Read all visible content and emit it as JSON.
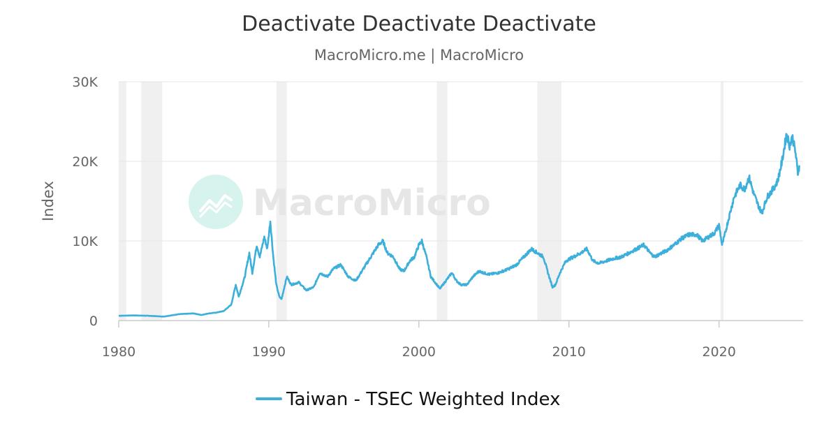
{
  "chart_data": {
    "type": "line",
    "title": "Deactivate Deactivate Deactivate",
    "subtitle": "MacroMicro.me | MacroMicro",
    "ylabel": "Index",
    "xlabel": "",
    "xlim": [
      1980,
      2025.6
    ],
    "ylim": [
      0,
      30000
    ],
    "x_ticks": [
      {
        "value": 1980,
        "label": "1980"
      },
      {
        "value": 1990,
        "label": "1990"
      },
      {
        "value": 2000,
        "label": "2000"
      },
      {
        "value": 2010,
        "label": "2010"
      },
      {
        "value": 2020,
        "label": "2020"
      }
    ],
    "y_ticks": [
      {
        "value": 0,
        "label": "0"
      },
      {
        "value": 10000,
        "label": "10K"
      },
      {
        "value": 20000,
        "label": "20K"
      },
      {
        "value": 30000,
        "label": "30K"
      }
    ],
    "grid": true,
    "legend_position": "bottom",
    "watermark": "MacroMicro",
    "shaded_periods": [
      [
        1980.0,
        1980.5
      ],
      [
        1981.5,
        1982.9
      ],
      [
        1990.5,
        1991.2
      ],
      [
        2001.2,
        2001.9
      ],
      [
        2007.9,
        2009.5
      ],
      [
        2020.1,
        2020.3
      ]
    ],
    "series": [
      {
        "name": "Taiwan - TSEC Weighted Index",
        "color": "#3cafdb",
        "x": [
          1980.0,
          1981.0,
          1982.0,
          1983.0,
          1984.0,
          1985.0,
          1985.5,
          1986.0,
          1986.5,
          1987.0,
          1987.5,
          1987.8,
          1988.0,
          1988.4,
          1988.7,
          1988.9,
          1989.2,
          1989.4,
          1989.7,
          1989.9,
          1990.1,
          1990.3,
          1990.5,
          1990.7,
          1990.85,
          1991.2,
          1991.5,
          1992.0,
          1992.5,
          1993.0,
          1993.4,
          1993.9,
          1994.3,
          1994.8,
          1995.3,
          1995.8,
          1996.3,
          1996.8,
          1997.3,
          1997.6,
          1997.9,
          1998.3,
          1998.7,
          1999.0,
          1999.4,
          1999.7,
          2000.0,
          2000.2,
          2000.5,
          2000.8,
          2001.0,
          2001.4,
          2001.8,
          2002.2,
          2002.5,
          2002.8,
          2003.2,
          2003.6,
          2004.0,
          2004.3,
          2004.7,
          2005.3,
          2006.0,
          2006.5,
          2007.0,
          2007.5,
          2007.9,
          2008.3,
          2008.6,
          2008.9,
          2009.1,
          2009.4,
          2009.8,
          2010.3,
          2010.8,
          2011.2,
          2011.6,
          2012.0,
          2012.5,
          2013.0,
          2013.5,
          2014.0,
          2014.5,
          2015.0,
          2015.4,
          2015.7,
          2016.0,
          2016.5,
          2017.0,
          2017.5,
          2018.0,
          2018.5,
          2018.9,
          2019.3,
          2019.7,
          2020.0,
          2020.2,
          2020.35,
          2020.6,
          2021.0,
          2021.4,
          2021.7,
          2022.0,
          2022.3,
          2022.6,
          2022.85,
          2023.2,
          2023.6,
          2023.9,
          2024.2,
          2024.5,
          2024.7,
          2024.9,
          2025.1,
          2025.25,
          2025.35
        ],
        "values": [
          600,
          650,
          600,
          500,
          800,
          900,
          700,
          900,
          1000,
          1200,
          2000,
          4500,
          3000,
          5500,
          8500,
          6000,
          9500,
          8000,
          10500,
          9000,
          12500,
          8000,
          4500,
          3000,
          2700,
          5500,
          4500,
          4800,
          3800,
          4200,
          6000,
          5500,
          6500,
          7000,
          5500,
          5000,
          6500,
          8000,
          9500,
          10000,
          8500,
          8000,
          6500,
          6200,
          7500,
          8000,
          9500,
          10000,
          8000,
          5500,
          5000,
          4000,
          5000,
          6000,
          5000,
          4500,
          4500,
          5500,
          6200,
          6000,
          5800,
          6000,
          6500,
          7000,
          8000,
          9000,
          8500,
          8000,
          6000,
          4200,
          4500,
          6000,
          7500,
          8000,
          8500,
          9000,
          7500,
          7200,
          7500,
          7800,
          8000,
          8500,
          9000,
          9500,
          8500,
          8000,
          8300,
          8800,
          9500,
          10300,
          10800,
          10800,
          10000,
          10500,
          11000,
          12000,
          9500,
          10500,
          12500,
          15500,
          17000,
          16500,
          18000,
          16000,
          14500,
          13500,
          15500,
          16500,
          17500,
          20000,
          23500,
          22000,
          23000,
          21000,
          18500,
          19500
        ]
      }
    ]
  }
}
